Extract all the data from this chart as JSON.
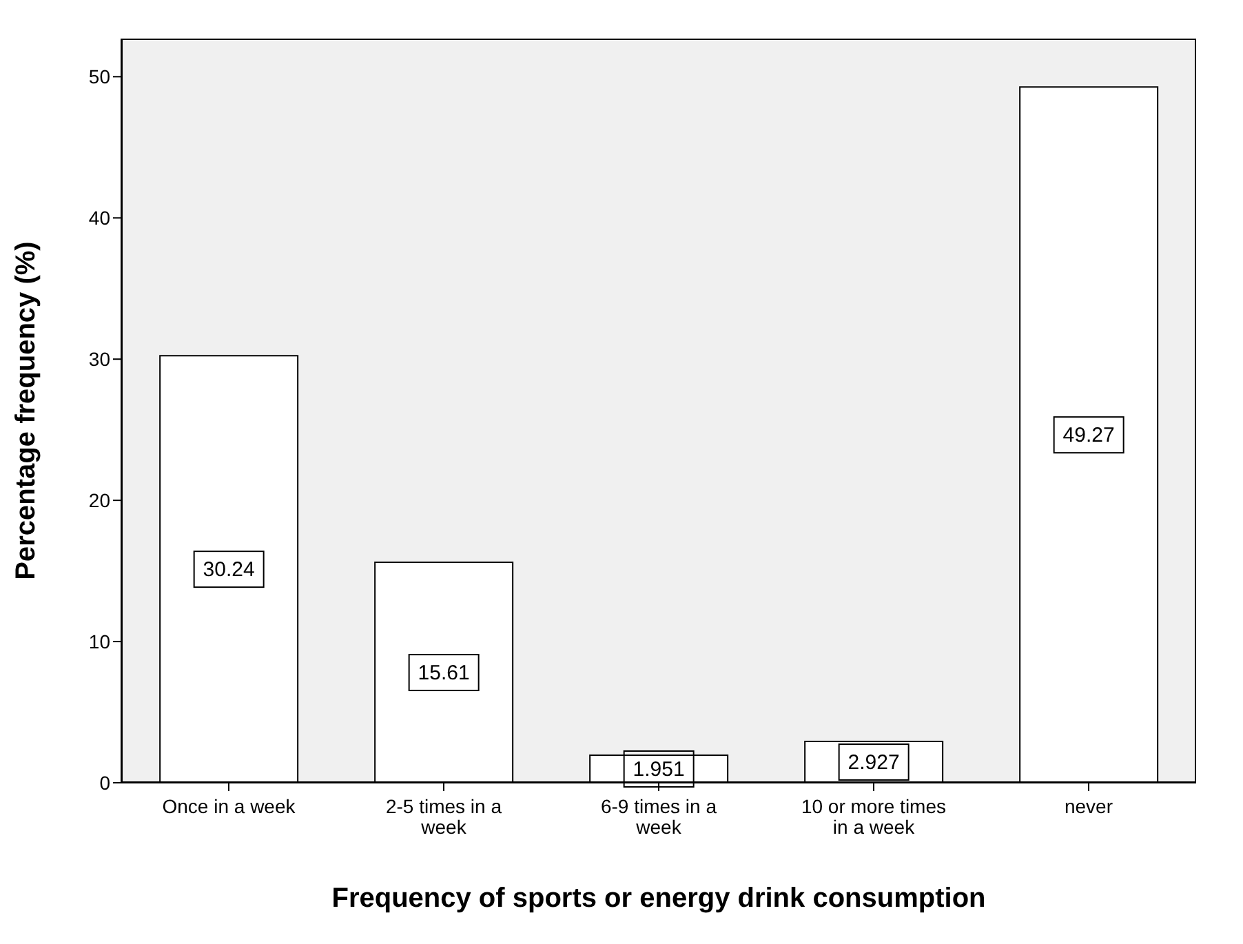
{
  "chart_data": {
    "type": "bar",
    "xlabel": "Frequency of sports or energy drink consumption",
    "ylabel": "Percentage frequency (%)",
    "categories": [
      "Once in a week",
      "2-5 times in a week",
      "6-9 times in a week",
      "10 or more times in a week",
      "never"
    ],
    "values": [
      30.24,
      15.61,
      1.951,
      2.927,
      49.27
    ],
    "color": "#ffffff",
    "data_labels": true,
    "ylim": [
      0,
      52.7
    ],
    "yticks": [
      0,
      10,
      20,
      30,
      40,
      50
    ]
  }
}
